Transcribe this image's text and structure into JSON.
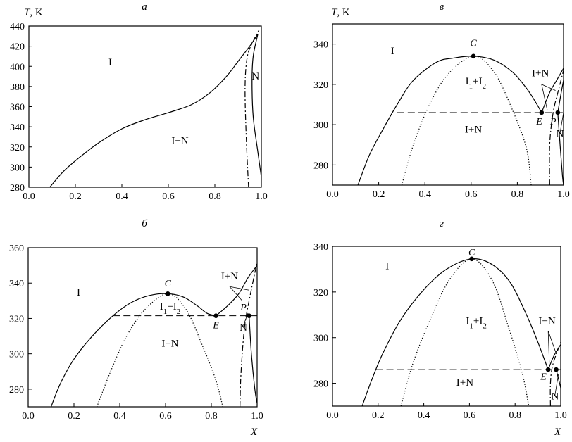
{
  "chart_data": [
    {
      "id": "a",
      "type": "line",
      "panel_label": "а",
      "ylabel": "T, K",
      "xlabel": "",
      "xlim": [
        0.0,
        1.0
      ],
      "ylim": [
        280,
        440
      ],
      "x_ticks": [
        "0.0",
        "0.2",
        "0.4",
        "0.6",
        "0.8",
        "1.0"
      ],
      "y_ticks": [
        "280",
        "300",
        "320",
        "340",
        "360",
        "380",
        "400",
        "420",
        "440"
      ],
      "series": [
        {
          "style": "solid",
          "points": [
            [
              0.09,
              280
            ],
            [
              0.15,
              296
            ],
            [
              0.22,
              310
            ],
            [
              0.3,
              324
            ],
            [
              0.4,
              338
            ],
            [
              0.5,
              347
            ],
            [
              0.6,
              354
            ],
            [
              0.7,
              362
            ],
            [
              0.78,
              374
            ],
            [
              0.85,
              390
            ],
            [
              0.9,
              405
            ],
            [
              0.95,
              420
            ],
            [
              0.985,
              432
            ]
          ]
        },
        {
          "style": "solid",
          "points": [
            [
              0.985,
              432
            ],
            [
              0.965,
              410
            ],
            [
              0.96,
              385
            ],
            [
              0.965,
              350
            ],
            [
              0.985,
              315
            ],
            [
              1.0,
              290
            ]
          ]
        },
        {
          "style": "dashdot",
          "points": [
            [
              0.945,
              280
            ],
            [
              0.935,
              330
            ],
            [
              0.93,
              380
            ],
            [
              0.94,
              410
            ],
            [
              0.965,
              425
            ],
            [
              0.99,
              436
            ]
          ]
        }
      ],
      "labels": [
        {
          "text": "I",
          "x": 0.35,
          "y": 401
        },
        {
          "text": "N",
          "x": 0.975,
          "y": 387
        },
        {
          "text": "I+N",
          "x": 0.65,
          "y": 323
        }
      ],
      "points": []
    },
    {
      "id": "v",
      "type": "line",
      "panel_label": "в",
      "ylabel": "T, K",
      "xlabel": "",
      "xlim": [
        0.0,
        1.0
      ],
      "ylim": [
        270,
        350
      ],
      "x_ticks": [
        "0.0",
        "0.2",
        "0.4",
        "0.6",
        "0.8",
        "1.0"
      ],
      "y_ticks": [
        "280",
        "300",
        "320",
        "340"
      ],
      "tie_line_T": 306,
      "tie_line_x": [
        0.28,
        1.0
      ],
      "series": [
        {
          "style": "solid",
          "points": [
            [
              0.11,
              270
            ],
            [
              0.16,
              285
            ],
            [
              0.22,
              298
            ],
            [
              0.28,
              310
            ],
            [
              0.35,
              322
            ],
            [
              0.45,
              331
            ],
            [
              0.52,
              333
            ],
            [
              0.61,
              334
            ],
            [
              0.7,
              332
            ],
            [
              0.78,
              326
            ],
            [
              0.84,
              318
            ],
            [
              0.88,
              311
            ],
            [
              0.905,
              306
            ]
          ]
        },
        {
          "style": "dotted",
          "points": [
            [
              0.3,
              270
            ],
            [
              0.35,
              290
            ],
            [
              0.42,
              310
            ],
            [
              0.5,
              325
            ],
            [
              0.61,
              334
            ],
            [
              0.7,
              326
            ],
            [
              0.78,
              307
            ],
            [
              0.84,
              288
            ],
            [
              0.86,
              270
            ]
          ]
        },
        {
          "style": "solid",
          "points": [
            [
              0.905,
              306
            ],
            [
              0.94,
              316
            ],
            [
              0.97,
              322
            ],
            [
              1.0,
              328
            ]
          ]
        },
        {
          "style": "solid",
          "points": [
            [
              0.975,
              306
            ],
            [
              0.99,
              316
            ],
            [
              1.0,
              322
            ]
          ]
        },
        {
          "style": "solid",
          "points": [
            [
              0.975,
              306
            ],
            [
              0.985,
              290
            ],
            [
              0.995,
              275
            ],
            [
              1.0,
              270
            ]
          ]
        },
        {
          "style": "dashdot",
          "points": [
            [
              0.94,
              270
            ],
            [
              0.94,
              290
            ],
            [
              0.955,
              306
            ],
            [
              0.98,
              318
            ],
            [
              1.0,
              327
            ]
          ]
        }
      ],
      "labels": [
        {
          "text": "I",
          "x": 0.26,
          "y": 335
        },
        {
          "text": "I₁+I₂",
          "x": 0.62,
          "y": 320
        },
        {
          "text": "I+N",
          "x": 0.9,
          "y": 324
        },
        {
          "text": "I+N",
          "x": 0.61,
          "y": 296
        },
        {
          "text": "N",
          "x": 0.985,
          "y": 294
        }
      ],
      "points": [
        {
          "name": "C",
          "x": 0.61,
          "y": 334,
          "label_dx": 0.0,
          "label_dy": 5
        },
        {
          "name": "E",
          "x": 0.905,
          "y": 306,
          "label_dx": -0.01,
          "label_dy": -6
        },
        {
          "name": "P",
          "x": 0.975,
          "y": 306,
          "label_dx": -0.02,
          "label_dy": -6
        }
      ],
      "leaders": [
        [
          [
            0.905,
            320
          ],
          [
            0.93,
            307
          ]
        ],
        [
          [
            0.905,
            320
          ],
          [
            0.965,
            317
          ]
        ],
        [
          [
            0.985,
            296
          ],
          [
            1.0,
            306
          ]
        ]
      ]
    },
    {
      "id": "b",
      "type": "line",
      "panel_label": "б",
      "ylabel": "",
      "xlabel": "X",
      "xlim": [
        0.0,
        1.0
      ],
      "ylim": [
        270,
        360
      ],
      "x_ticks": [
        "0.0",
        "0.2",
        "0.4",
        "0.6",
        "0.8",
        "1.0"
      ],
      "y_ticks": [
        "280",
        "300",
        "320",
        "340",
        "360"
      ],
      "tie_line_T": 321.5,
      "tie_line_x": [
        0.37,
        1.0
      ],
      "series": [
        {
          "style": "solid",
          "points": [
            [
              0.1,
              270
            ],
            [
              0.14,
              283
            ],
            [
              0.2,
              297
            ],
            [
              0.28,
              310
            ],
            [
              0.37,
              321.5
            ],
            [
              0.45,
              329
            ],
            [
              0.53,
              333
            ],
            [
              0.61,
              334
            ],
            [
              0.68,
              332
            ],
            [
              0.74,
              327
            ],
            [
              0.78,
              323
            ],
            [
              0.82,
              321.5
            ]
          ]
        },
        {
          "style": "solid",
          "points": [
            [
              0.82,
              321.5
            ],
            [
              0.87,
              327
            ],
            [
              0.92,
              334
            ],
            [
              0.96,
              343
            ],
            [
              1.0,
              350
            ]
          ]
        },
        {
          "style": "dotted",
          "points": [
            [
              0.3,
              270
            ],
            [
              0.36,
              290
            ],
            [
              0.43,
              310
            ],
            [
              0.51,
              325
            ],
            [
              0.61,
              334
            ],
            [
              0.69,
              325
            ],
            [
              0.76,
              305
            ],
            [
              0.82,
              285
            ],
            [
              0.85,
              270
            ]
          ]
        },
        {
          "style": "solid",
          "points": [
            [
              0.965,
              321.5
            ],
            [
              0.975,
              300
            ],
            [
              0.99,
              280
            ],
            [
              1.0,
              272
            ]
          ]
        },
        {
          "style": "dashdot",
          "points": [
            [
              0.925,
              270
            ],
            [
              0.93,
              290
            ],
            [
              0.945,
              315
            ],
            [
              0.965,
              330
            ],
            [
              1.0,
              352
            ]
          ]
        }
      ],
      "labels": [
        {
          "text": "I",
          "x": 0.22,
          "y": 333
        },
        {
          "text": "I₁+I₂",
          "x": 0.62,
          "y": 325
        },
        {
          "text": "I+N",
          "x": 0.88,
          "y": 342
        },
        {
          "text": "I+N",
          "x": 0.62,
          "y": 304
        },
        {
          "text": "N",
          "x": 0.94,
          "y": 313
        }
      ],
      "points": [
        {
          "name": "C",
          "x": 0.61,
          "y": 334,
          "label_dx": 0.0,
          "label_dy": 4
        },
        {
          "name": "E",
          "x": 0.82,
          "y": 321.5,
          "label_dx": 0.0,
          "label_dy": -7
        },
        {
          "name": "P",
          "x": 0.965,
          "y": 321.5,
          "label_dx": -0.025,
          "label_dy": 3
        }
      ],
      "leaders": [
        [
          [
            0.88,
            338
          ],
          [
            0.935,
            330
          ]
        ],
        [
          [
            0.88,
            338
          ],
          [
            0.965,
            336
          ]
        ],
        [
          [
            0.94,
            316
          ],
          [
            0.96,
            323
          ]
        ]
      ]
    },
    {
      "id": "g",
      "type": "line",
      "panel_label": "г",
      "ylabel": "",
      "xlabel": "X",
      "xlim": [
        0.0,
        1.0
      ],
      "ylim": [
        270,
        340
      ],
      "x_ticks": [
        "0.0",
        "0.2",
        "0.4",
        "0.6",
        "0.8",
        "1.0"
      ],
      "y_ticks": [
        "280",
        "300",
        "320",
        "340"
      ],
      "tie_line_T": 286,
      "tie_line_x": [
        0.19,
        1.0
      ],
      "series": [
        {
          "style": "solid",
          "points": [
            [
              0.13,
              270
            ],
            [
              0.17,
              281
            ],
            [
              0.22,
              293
            ],
            [
              0.3,
              308
            ],
            [
              0.4,
              321
            ],
            [
              0.5,
              330
            ],
            [
              0.61,
              334.5
            ],
            [
              0.7,
              332
            ],
            [
              0.78,
              324
            ],
            [
              0.85,
              310
            ],
            [
              0.9,
              298
            ],
            [
              0.93,
              290
            ],
            [
              0.945,
              286
            ]
          ]
        },
        {
          "style": "dotted",
          "points": [
            [
              0.3,
              270
            ],
            [
              0.35,
              288
            ],
            [
              0.42,
              306
            ],
            [
              0.51,
              325
            ],
            [
              0.61,
              334.5
            ],
            [
              0.7,
              325
            ],
            [
              0.77,
              305
            ],
            [
              0.83,
              285
            ],
            [
              0.86,
              270
            ]
          ]
        },
        {
          "style": "solid",
          "points": [
            [
              0.945,
              286
            ],
            [
              0.97,
              292
            ],
            [
              1.0,
              297
            ]
          ]
        },
        {
          "style": "solid",
          "points": [
            [
              0.98,
              286
            ],
            [
              0.99,
              282
            ],
            [
              1.0,
              278
            ]
          ]
        },
        {
          "style": "dashdot",
          "points": [
            [
              0.955,
              270
            ],
            [
              0.955,
              280
            ],
            [
              0.965,
              288
            ],
            [
              1.0,
              298
            ]
          ]
        }
      ],
      "labels": [
        {
          "text": "I",
          "x": 0.24,
          "y": 330
        },
        {
          "text": "I₁+I₂",
          "x": 0.63,
          "y": 306
        },
        {
          "text": "I+N",
          "x": 0.94,
          "y": 306
        },
        {
          "text": "I+N",
          "x": 0.58,
          "y": 279
        },
        {
          "text": "N",
          "x": 0.975,
          "y": 273
        }
      ],
      "points": [
        {
          "name": "C",
          "x": 0.61,
          "y": 334.5,
          "label_dx": 0.0,
          "label_dy": 1.5
        },
        {
          "name": "E",
          "x": 0.945,
          "y": 286,
          "label_dx": -0.02,
          "label_dy": -4.5
        },
        {
          "name": "",
          "x": 0.98,
          "y": 286,
          "label_dx": 0,
          "label_dy": 0
        }
      ],
      "leaders": [
        [
          [
            0.945,
            303
          ],
          [
            0.95,
            289
          ]
        ],
        [
          [
            0.945,
            303
          ],
          [
            0.98,
            293
          ]
        ],
        [
          [
            0.975,
            275
          ],
          [
            0.99,
            284
          ]
        ]
      ]
    }
  ]
}
